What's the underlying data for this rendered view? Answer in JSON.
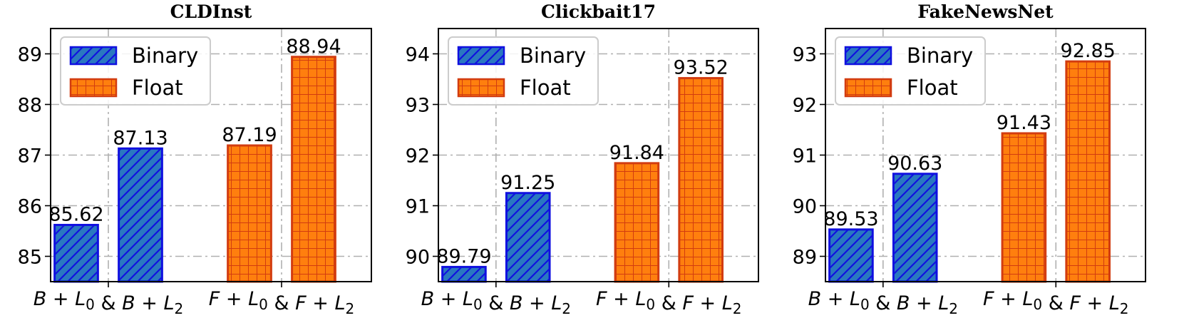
{
  "colors": {
    "binary_fill": "#2a78c0",
    "binary_edge": "#1010e0",
    "float_fill": "#ff7f0e",
    "float_edge": "#d23c10",
    "grid": "#b0b0b0"
  },
  "chart_data": [
    {
      "type": "bar",
      "title": "CLDInst",
      "ylim": [
        84.5,
        89.5
      ],
      "yticks": [
        85,
        86,
        87,
        88,
        89
      ],
      "grid": true,
      "legend_position": "top-left",
      "xlabel_parts": [
        {
          "var": "B",
          "sub": "0",
          "type": "L0"
        },
        {
          "amp": "&"
        },
        {
          "var": "B",
          "sub": "2",
          "type": "L2"
        }
      ],
      "group_labels": [
        {
          "left": "B",
          "left_sub": "0",
          "right": "B",
          "right_sub": "2"
        },
        {
          "left": "F",
          "left_sub": "0",
          "right": "F",
          "right_sub": "2"
        }
      ],
      "series": [
        {
          "name": "Binary",
          "values": [
            85.62,
            87.13
          ],
          "labels": [
            "85.62",
            "87.13"
          ]
        },
        {
          "name": "Float",
          "values": [
            87.19,
            88.94
          ],
          "labels": [
            "87.19",
            "88.94"
          ]
        }
      ]
    },
    {
      "type": "bar",
      "title": "Clickbait17",
      "ylim": [
        89.5,
        94.5
      ],
      "yticks": [
        90,
        91,
        92,
        93,
        94
      ],
      "grid": true,
      "legend_position": "top-left",
      "group_labels": [
        {
          "left": "B",
          "left_sub": "0",
          "right": "B",
          "right_sub": "2"
        },
        {
          "left": "F",
          "left_sub": "0",
          "right": "F",
          "right_sub": "2"
        }
      ],
      "series": [
        {
          "name": "Binary",
          "values": [
            89.79,
            91.25
          ],
          "labels": [
            "89.79",
            "91.25"
          ]
        },
        {
          "name": "Float",
          "values": [
            91.84,
            93.52
          ],
          "labels": [
            "91.84",
            "93.52"
          ]
        }
      ]
    },
    {
      "type": "bar",
      "title": "FakeNewsNet",
      "ylim": [
        88.5,
        93.5
      ],
      "yticks": [
        89,
        90,
        91,
        92,
        93
      ],
      "grid": true,
      "legend_position": "top-left",
      "group_labels": [
        {
          "left": "B",
          "left_sub": "0",
          "right": "B",
          "right_sub": "2"
        },
        {
          "left": "F",
          "left_sub": "0",
          "right": "F",
          "right_sub": "2"
        }
      ],
      "series": [
        {
          "name": "Binary",
          "values": [
            89.53,
            90.63
          ],
          "labels": [
            "89.53",
            "90.63"
          ]
        },
        {
          "name": "Float",
          "values": [
            91.43,
            92.85
          ],
          "labels": [
            "91.43",
            "92.85"
          ]
        }
      ]
    }
  ]
}
